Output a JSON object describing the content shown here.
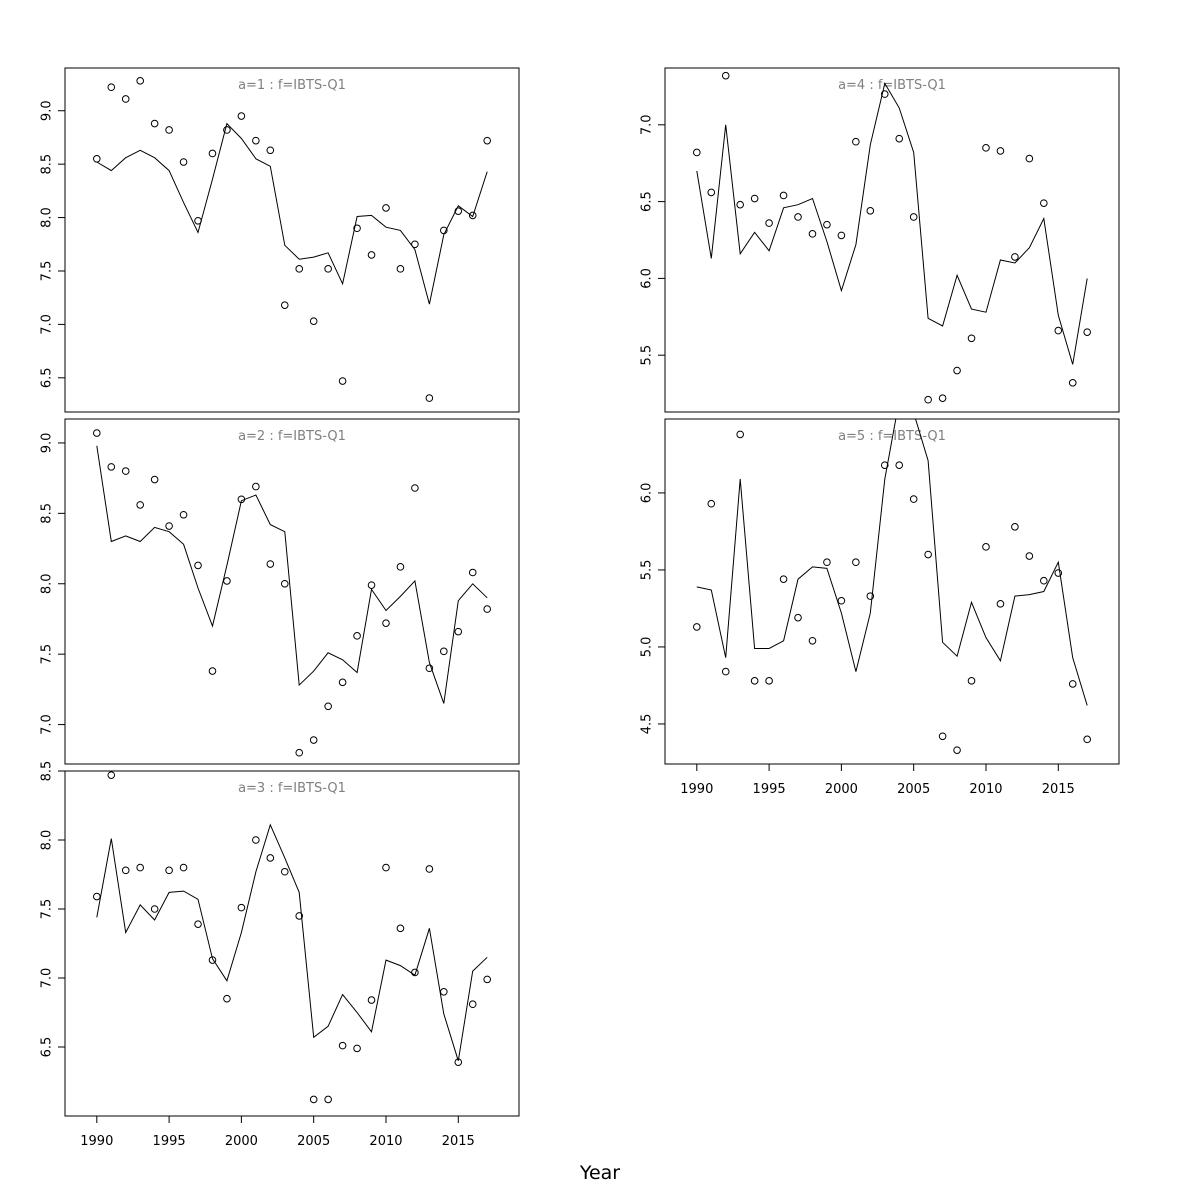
{
  "chart_data": {
    "type": "scatter",
    "xlabel": "Year",
    "panels": [
      {
        "title": "a=1  :  f=IBTS-Q1",
        "ylim": [
          6.18,
          9.4
        ],
        "yticks": [
          6.5,
          7.0,
          7.5,
          8.0,
          8.5,
          9.0
        ],
        "ytick_labels": [
          "6.5",
          "7.0",
          "7.5",
          "8.0",
          "8.5",
          "9.0"
        ],
        "x": [
          1990,
          1991,
          1992,
          1993,
          1994,
          1995,
          1996,
          1997,
          1998,
          1999,
          2000,
          2001,
          2002,
          2003,
          2004,
          2005,
          2006,
          2007,
          2008,
          2009,
          2010,
          2011,
          2012,
          2013,
          2014,
          2015,
          2016,
          2017
        ],
        "observed": [
          8.55,
          9.22,
          9.11,
          9.28,
          8.88,
          8.82,
          8.52,
          7.97,
          8.6,
          8.82,
          8.95,
          8.72,
          8.63,
          7.18,
          7.52,
          7.03,
          7.52,
          6.47,
          7.9,
          7.65,
          8.09,
          7.52,
          7.75,
          6.31,
          7.88,
          8.06,
          8.02,
          8.72
        ],
        "fitted": [
          8.52,
          8.44,
          8.56,
          8.63,
          8.56,
          8.44,
          8.14,
          7.86,
          8.36,
          8.88,
          8.74,
          8.55,
          8.48,
          7.74,
          7.61,
          7.63,
          7.67,
          7.38,
          8.01,
          8.02,
          7.91,
          7.88,
          7.7,
          7.19,
          7.84,
          8.11,
          8.01,
          8.43
        ]
      },
      {
        "title": "a=2  :  f=IBTS-Q1",
        "ylim": [
          6.72,
          9.17
        ],
        "yticks": [
          7.0,
          7.5,
          8.0,
          8.5,
          9.0
        ],
        "ytick_labels": [
          "7.0",
          "7.5",
          "8.0",
          "8.5",
          "9.0"
        ],
        "x": [
          1990,
          1991,
          1992,
          1993,
          1994,
          1995,
          1996,
          1997,
          1998,
          1999,
          2000,
          2001,
          2002,
          2003,
          2004,
          2005,
          2006,
          2007,
          2008,
          2009,
          2010,
          2011,
          2012,
          2013,
          2014,
          2015,
          2016,
          2017
        ],
        "observed": [
          9.07,
          8.83,
          8.8,
          8.56,
          8.74,
          8.41,
          8.49,
          8.13,
          7.38,
          8.02,
          8.6,
          8.69,
          8.14,
          8.0,
          6.8,
          6.89,
          7.13,
          7.3,
          7.63,
          7.99,
          7.72,
          8.12,
          8.68,
          7.4,
          7.52,
          7.66,
          8.08,
          7.82
        ],
        "fitted": [
          8.98,
          8.3,
          8.34,
          8.3,
          8.4,
          8.37,
          8.28,
          7.97,
          7.7,
          8.13,
          8.59,
          8.63,
          8.42,
          8.37,
          7.28,
          7.38,
          7.51,
          7.46,
          7.37,
          7.96,
          7.81,
          7.91,
          8.02,
          7.44,
          7.15,
          7.88,
          8.0,
          7.9
        ]
      },
      {
        "title": "a=3  :  f=IBTS-Q1",
        "ylim": [
          6.0,
          8.5
        ],
        "yticks": [
          6.5,
          7.0,
          7.5,
          8.0,
          8.5
        ],
        "ytick_labels": [
          "6.5",
          "7.0",
          "7.5",
          "8.0",
          "8.5"
        ],
        "x": [
          1990,
          1991,
          1992,
          1993,
          1994,
          1995,
          1996,
          1997,
          1998,
          1999,
          2000,
          2001,
          2002,
          2003,
          2004,
          2005,
          2006,
          2007,
          2008,
          2009,
          2010,
          2011,
          2012,
          2013,
          2014,
          2015,
          2016,
          2017
        ],
        "observed": [
          7.59,
          8.47,
          7.78,
          7.8,
          7.5,
          7.78,
          7.8,
          7.39,
          7.13,
          6.85,
          7.51,
          8.0,
          7.87,
          7.77,
          7.45,
          6.12,
          6.12,
          6.51,
          6.49,
          6.84,
          7.8,
          7.36,
          7.04,
          7.79,
          6.9,
          6.39,
          6.81,
          6.99
        ],
        "fitted": [
          7.44,
          8.01,
          7.33,
          7.53,
          7.42,
          7.62,
          7.63,
          7.57,
          7.14,
          6.98,
          7.33,
          7.77,
          8.11,
          7.87,
          7.62,
          6.57,
          6.65,
          6.88,
          6.75,
          6.61,
          7.13,
          7.09,
          7.02,
          7.36,
          6.74,
          6.4,
          7.05,
          7.15
        ]
      },
      {
        "title": "a=4  :  f=IBTS-Q1",
        "ylim": [
          5.13,
          7.37
        ],
        "yticks": [
          5.5,
          6.0,
          6.5,
          7.0
        ],
        "ytick_labels": [
          "5.5",
          "6.0",
          "6.5",
          "7.0"
        ],
        "x": [
          1990,
          1991,
          1992,
          1993,
          1994,
          1995,
          1996,
          1997,
          1998,
          1999,
          2000,
          2001,
          2002,
          2003,
          2004,
          2005,
          2006,
          2007,
          2008,
          2009,
          2010,
          2011,
          2012,
          2013,
          2014,
          2015,
          2016,
          2017
        ],
        "observed": [
          6.82,
          6.56,
          7.32,
          6.48,
          6.52,
          6.36,
          6.54,
          6.4,
          6.29,
          6.35,
          6.28,
          6.89,
          6.44,
          7.2,
          6.91,
          6.4,
          5.21,
          5.22,
          5.4,
          5.61,
          6.85,
          6.83,
          6.14,
          6.78,
          6.49,
          5.66,
          5.32,
          5.65
        ],
        "fitted": [
          6.7,
          6.13,
          7.0,
          6.16,
          6.3,
          6.18,
          6.46,
          6.48,
          6.52,
          6.24,
          5.92,
          6.22,
          6.87,
          7.27,
          7.11,
          6.82,
          5.74,
          5.69,
          6.02,
          5.8,
          5.78,
          6.12,
          6.1,
          6.2,
          6.39,
          5.76,
          5.44,
          6.0
        ]
      },
      {
        "title": "a=5  :  f=IBTS-Q1",
        "ylim": [
          4.24,
          6.48
        ],
        "yticks": [
          4.5,
          5.0,
          5.5,
          6.0
        ],
        "ytick_labels": [
          "4.5",
          "5.0",
          "5.5",
          "6.0"
        ],
        "x": [
          1990,
          1991,
          1992,
          1993,
          1994,
          1995,
          1996,
          1997,
          1998,
          1999,
          2000,
          2001,
          2002,
          2003,
          2004,
          2005,
          2006,
          2007,
          2008,
          2009,
          2010,
          2011,
          2012,
          2013,
          2014,
          2015,
          2016,
          2017
        ],
        "observed": [
          5.13,
          5.93,
          4.84,
          6.38,
          4.78,
          4.78,
          5.44,
          5.19,
          5.04,
          5.55,
          5.3,
          5.55,
          5.33,
          6.18,
          6.18,
          5.96,
          5.6,
          4.42,
          4.33,
          4.78,
          5.65,
          5.28,
          5.78,
          5.59,
          5.43,
          5.48,
          4.76,
          4.4
        ],
        "fitted": [
          5.39,
          5.37,
          4.93,
          6.09,
          4.99,
          4.99,
          5.04,
          5.44,
          5.52,
          5.51,
          5.22,
          4.84,
          5.22,
          6.09,
          6.6,
          6.52,
          6.21,
          5.03,
          4.94,
          5.29,
          5.06,
          4.91,
          5.33,
          5.34,
          5.36,
          5.55,
          4.93,
          4.62
        ]
      }
    ],
    "xlim": [
      1987.8,
      2019.2
    ],
    "xticks": [
      1990,
      1995,
      2000,
      2005,
      2010,
      2015
    ],
    "xtick_labels": [
      "1990",
      "1995",
      "2000",
      "2005",
      "2010",
      "2015"
    ]
  }
}
